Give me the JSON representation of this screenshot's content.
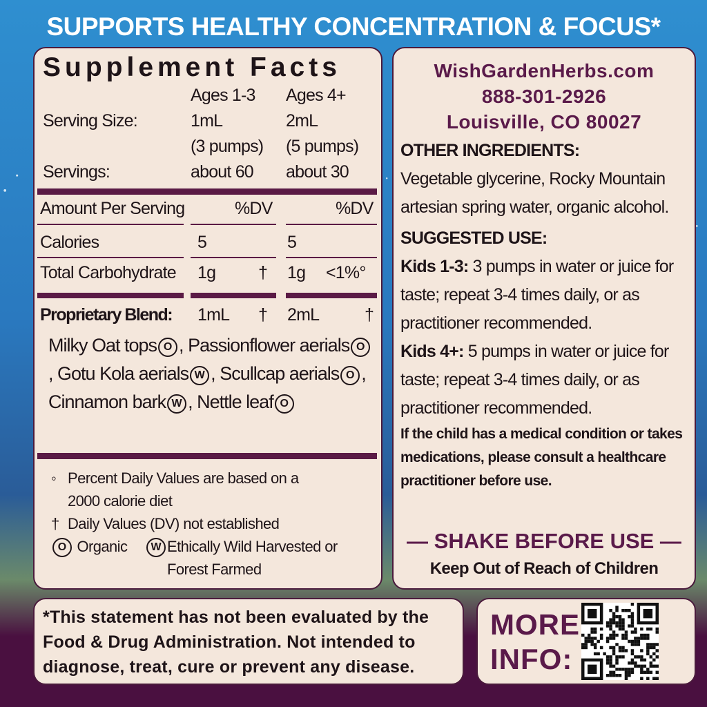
{
  "banner": "SUPPORTS HEALTHY CONCENTRATION & FOCUS*",
  "facts": {
    "title": "Supplement Facts",
    "ages": [
      "Ages 1-3",
      "Ages 4+"
    ],
    "serving_size": {
      "label": "Serving Size:",
      "values": [
        [
          "1mL",
          "(3 pumps)"
        ],
        [
          "2mL",
          "(5 pumps)"
        ]
      ]
    },
    "servings": {
      "label": "Servings:",
      "values": [
        "about 60",
        "about 30"
      ]
    },
    "amount": {
      "label": "Amount Per Serving",
      "dv": [
        "%DV",
        "%DV"
      ]
    },
    "calories": {
      "label": "Calories",
      "values": [
        "5",
        "5"
      ]
    },
    "carbohydrate": {
      "label": "Total Carbohydrate",
      "values": [
        "1g",
        "1g"
      ],
      "dv": [
        "†",
        "<1%°"
      ]
    },
    "blend": {
      "label": "Proprietary Blend:",
      "values": [
        "1mL",
        "2mL"
      ],
      "dv": [
        "†",
        "†"
      ]
    },
    "ingredients": [
      {
        "name": "Milky Oat tops",
        "mark": "O",
        "after": ","
      },
      {
        "name": "Passionflower aerials",
        "mark": "O",
        "after": ","
      },
      {
        "name": "Gotu Kola aerials",
        "mark": "W",
        "after": ","
      },
      {
        "name": "Scullcap aerials",
        "mark": "O",
        "after": ","
      },
      {
        "name": "Cinnamon bark",
        "mark": "W",
        "after": ","
      },
      {
        "name": "Nettle leaf",
        "mark": "O"
      }
    ],
    "footnotes": [
      {
        "symbol": "◦",
        "text": "Percent Daily Values are based on a 2000 calorie diet"
      },
      {
        "symbol": "†",
        "text": "Daily Values (DV) not established"
      }
    ],
    "legend": [
      {
        "mark": "O",
        "text": "Organic"
      },
      {
        "mark": "W",
        "text": "Ethically Wild Harvested or Forest Farmed"
      }
    ]
  },
  "contact": {
    "website": "WishGardenHerbs.com",
    "phone": "888-301-2926",
    "address": "Louisville, CO 80027"
  },
  "other_ingredients": {
    "heading": "OTHER INGREDIENTS:",
    "text": "Vegetable glycerine, Rocky Mountain artesian spring water, organic alcohol."
  },
  "suggested_use": {
    "heading": "SUGGESTED USE:",
    "items": [
      {
        "label": "Kids 1-3:",
        "text": "3 pumps in water or juice for taste; repeat 3-4 times daily, or as practitioner recommended."
      },
      {
        "label": "Kids 4+:",
        "text": "5 pumps in water or juice for taste; repeat 3-4 times daily, or as practitioner recommended."
      }
    ],
    "warning": "If the child has a medical condition or takes medications, please consult a healthcare practitioner before use."
  },
  "shake": "— SHAKE BEFORE USE —",
  "keep_out": "Keep Out of Reach of Children",
  "disclaimer": "*This statement has not been evaluated by the Food & Drug Administration. Not intended to diagnose, treat, cure or prevent any disease.",
  "more_info": "MORE INFO:"
}
